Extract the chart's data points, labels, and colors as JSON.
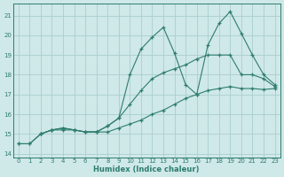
{
  "xlabel": "Humidex (Indice chaleur)",
  "background_color": "#cfe8e8",
  "line_color": "#2d7d6e",
  "grid_color": "#aacece",
  "xlim": [
    -0.5,
    23.5
  ],
  "ylim": [
    13.8,
    21.6
  ],
  "yticks": [
    14,
    15,
    16,
    17,
    18,
    19,
    20,
    21
  ],
  "xticks": [
    0,
    1,
    2,
    3,
    4,
    5,
    6,
    7,
    8,
    9,
    10,
    11,
    12,
    13,
    14,
    15,
    16,
    17,
    18,
    19,
    20,
    21,
    22,
    23
  ],
  "series": [
    {
      "x": [
        0,
        1,
        2,
        3,
        4,
        5,
        6,
        7,
        8,
        9,
        10,
        11,
        12,
        13,
        14,
        15,
        16,
        17,
        18,
        19,
        20,
        21,
        22,
        23
      ],
      "y": [
        14.5,
        14.5,
        15.0,
        15.2,
        15.2,
        15.2,
        15.1,
        15.1,
        15.1,
        15.3,
        15.5,
        15.7,
        16.0,
        16.2,
        16.5,
        16.8,
        17.0,
        17.2,
        17.3,
        17.4,
        17.3,
        17.3,
        17.25,
        17.3
      ]
    },
    {
      "x": [
        0,
        1,
        2,
        3,
        4,
        5,
        6,
        7,
        8,
        9,
        10,
        11,
        12,
        13,
        14,
        15,
        16,
        17,
        18,
        19,
        20,
        21,
        22,
        23
      ],
      "y": [
        14.5,
        14.5,
        15.0,
        15.2,
        15.3,
        15.2,
        15.1,
        15.1,
        15.4,
        15.8,
        16.5,
        17.2,
        17.8,
        18.1,
        18.3,
        18.5,
        18.8,
        19.0,
        19.0,
        19.0,
        18.0,
        18.0,
        17.8,
        17.4
      ]
    },
    {
      "x": [
        2,
        3,
        4,
        5,
        6,
        7,
        8,
        9,
        10,
        11,
        12,
        13,
        14,
        15,
        16,
        17,
        18,
        19,
        20,
        21,
        22,
        23
      ],
      "y": [
        15.0,
        15.2,
        15.3,
        15.2,
        15.1,
        15.1,
        15.4,
        15.8,
        18.0,
        19.3,
        19.9,
        20.4,
        19.1,
        17.5,
        17.0,
        19.5,
        20.6,
        21.2,
        20.1,
        19.0,
        18.0,
        17.5
      ]
    }
  ]
}
